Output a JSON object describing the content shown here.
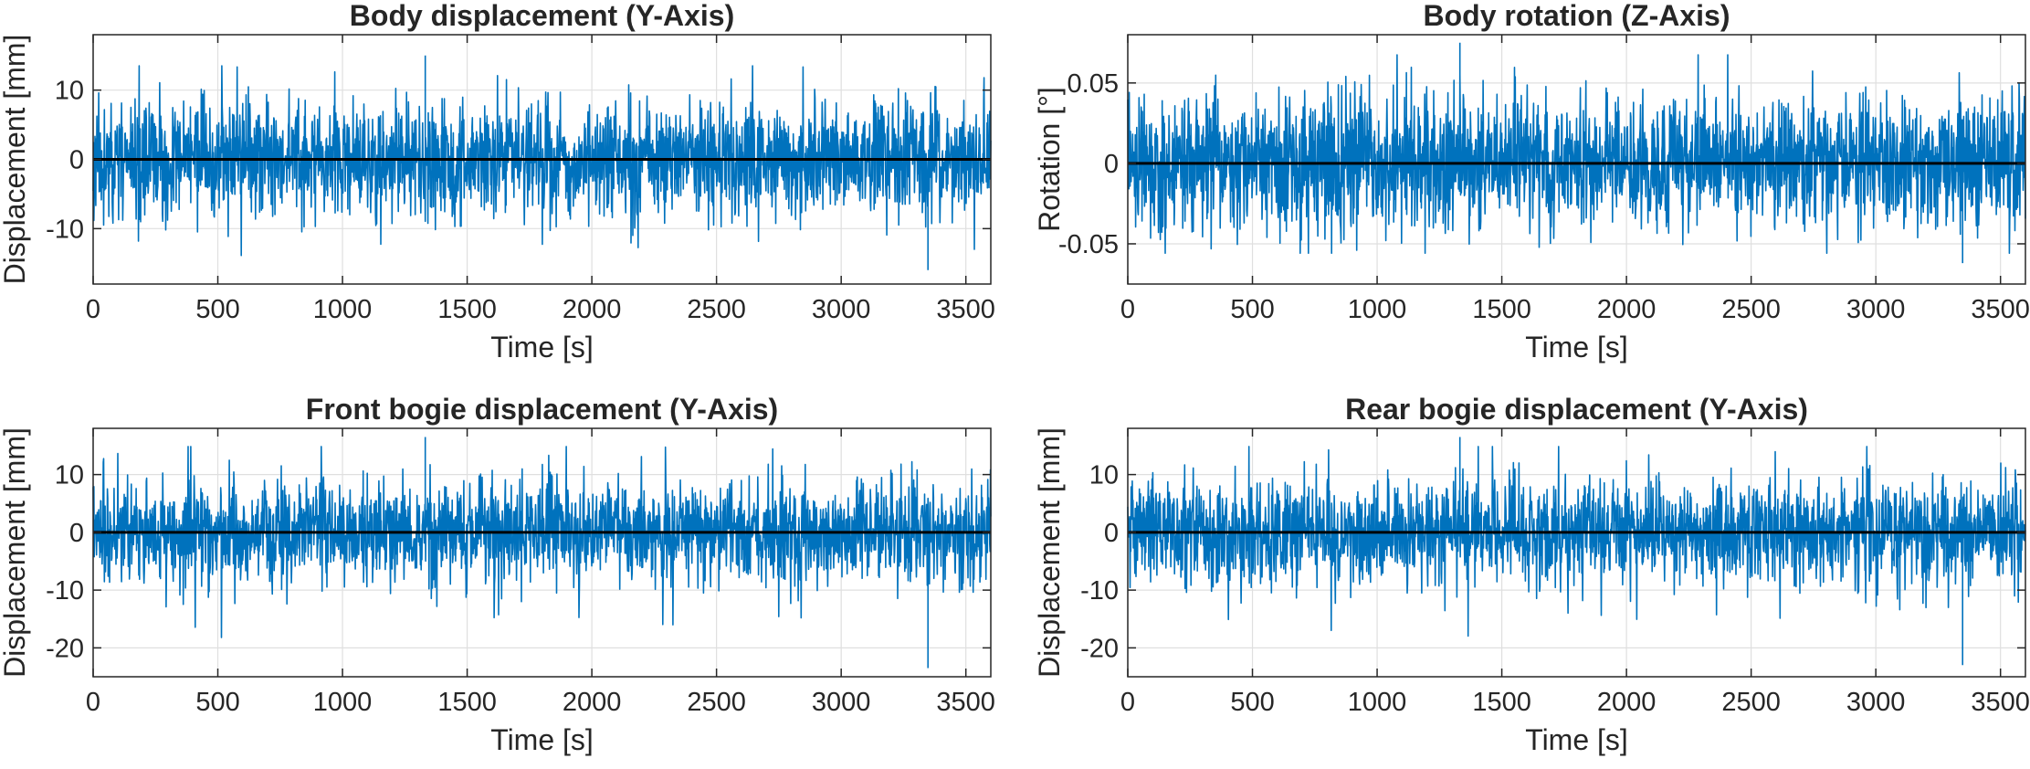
{
  "colors": {
    "signal": "#0072BD",
    "zero_line": "#000000",
    "grid": "#DFDFDF",
    "axes": "#262626"
  },
  "chart_data": [
    {
      "type": "line",
      "title": "Body displacement (Y-Axis)",
      "xlabel": "Time [s]",
      "ylabel": "Displacement [mm]",
      "xlim": [
        0,
        3600
      ],
      "ylim": [
        -18,
        18
      ],
      "xticks": [
        0,
        500,
        1000,
        1500,
        2000,
        2500,
        3000,
        3500
      ],
      "xtick_labels": [
        "0",
        "500",
        "1000",
        "1500",
        "2000",
        "2500",
        "3000",
        "3500"
      ],
      "yticks": [
        10,
        0,
        -10
      ],
      "ytick_labels": [
        "10",
        "0",
        "-10"
      ],
      "grid": true,
      "series": [
        {
          "name": "Displacement",
          "kind": "noise",
          "x_range": [
            0,
            3600
          ],
          "mean": 0,
          "typical_amplitude": 5,
          "peak_max": 15,
          "peak_min": -16,
          "seed": 11
        },
        {
          "name": "Zero line",
          "kind": "constant",
          "value": 0
        }
      ]
    },
    {
      "type": "line",
      "title": "Body rotation (Z-Axis)",
      "xlabel": "Time [s]",
      "ylabel": "Rotation [°]",
      "xlim": [
        0,
        3600
      ],
      "ylim": [
        -0.075,
        0.08
      ],
      "xticks": [
        0,
        500,
        1000,
        1500,
        2000,
        2500,
        3000,
        3500
      ],
      "xtick_labels": [
        "0",
        "500",
        "1000",
        "1500",
        "2000",
        "2500",
        "3000",
        "3500"
      ],
      "yticks": [
        0.05,
        0,
        -0.05
      ],
      "ytick_labels": [
        "0.05",
        "0",
        "-0.05"
      ],
      "grid": true,
      "series": [
        {
          "name": "Rotation",
          "kind": "noise",
          "x_range": [
            0,
            3600
          ],
          "mean": 0,
          "typical_amplitude": 0.025,
          "peak_max": 0.075,
          "peak_min": -0.062,
          "seed": 23
        },
        {
          "name": "Zero line",
          "kind": "constant",
          "value": 0
        }
      ]
    },
    {
      "type": "line",
      "title": "Front bogie displacement (Y-Axis)",
      "xlabel": "Time [s]",
      "ylabel": "Displacement [mm]",
      "xlim": [
        0,
        3600
      ],
      "ylim": [
        -25,
        18
      ],
      "xticks": [
        0,
        500,
        1000,
        1500,
        2000,
        2500,
        3000,
        3500
      ],
      "xtick_labels": [
        "0",
        "500",
        "1000",
        "1500",
        "2000",
        "2500",
        "3000",
        "3500"
      ],
      "yticks": [
        10,
        0,
        -10,
        -20
      ],
      "ytick_labels": [
        "10",
        "0",
        "-10",
        "-20"
      ],
      "grid": true,
      "series": [
        {
          "name": "Displacement",
          "kind": "noise",
          "x_range": [
            0,
            3600
          ],
          "mean": 0,
          "typical_amplitude": 5.5,
          "peak_max": 16.5,
          "peak_min": -23.5,
          "seed": 37
        },
        {
          "name": "Zero line",
          "kind": "constant",
          "value": 0
        }
      ]
    },
    {
      "type": "line",
      "title": "Rear bogie displacement (Y-Axis)",
      "xlabel": "Time [s]",
      "ylabel": "Displacement [mm]",
      "xlim": [
        0,
        3600
      ],
      "ylim": [
        -25,
        18
      ],
      "xticks": [
        0,
        500,
        1000,
        1500,
        2000,
        2500,
        3000,
        3500
      ],
      "xtick_labels": [
        "0",
        "500",
        "1000",
        "1500",
        "2000",
        "2500",
        "3000",
        "3500"
      ],
      "yticks": [
        10,
        0,
        -10,
        -20
      ],
      "ytick_labels": [
        "10",
        "0",
        "-10",
        "-20"
      ],
      "grid": true,
      "series": [
        {
          "name": "Displacement",
          "kind": "noise",
          "x_range": [
            0,
            3600
          ],
          "mean": 0,
          "typical_amplitude": 5.5,
          "peak_max": 16.5,
          "peak_min": -23,
          "seed": 53
        },
        {
          "name": "Zero line",
          "kind": "constant",
          "value": 0
        }
      ]
    }
  ]
}
